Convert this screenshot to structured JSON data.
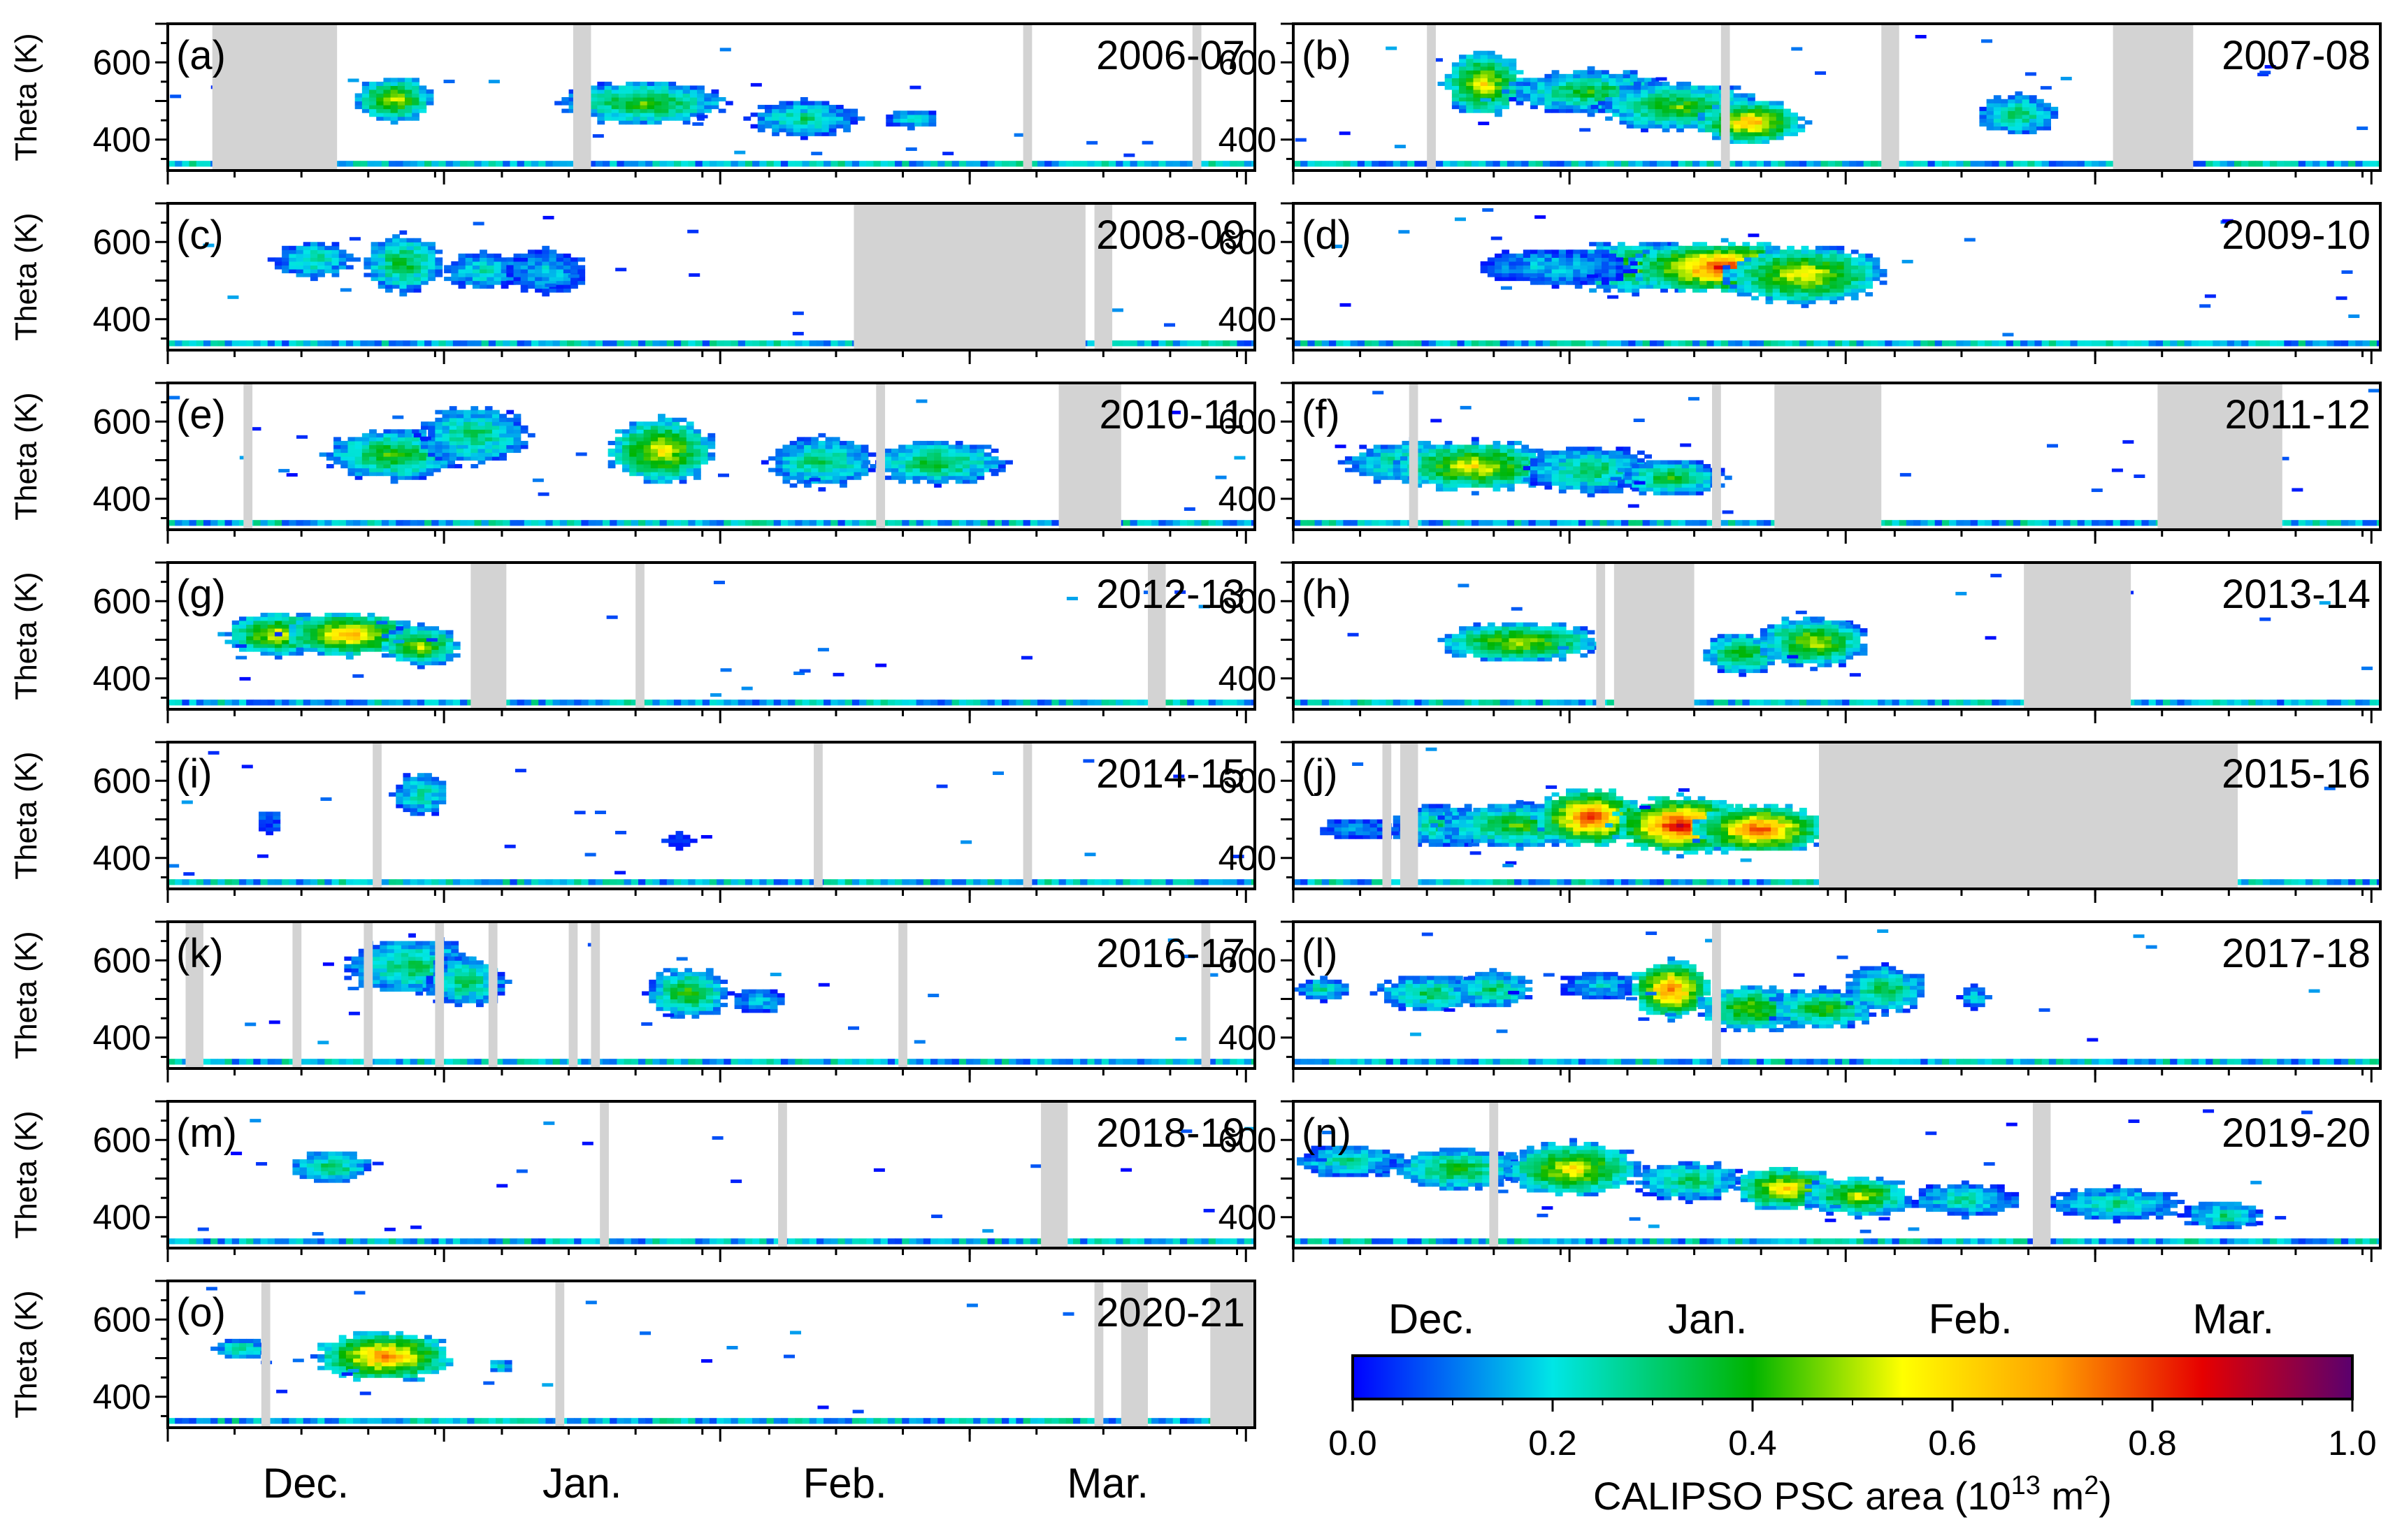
{
  "chart_data": {
    "type": "heatmap",
    "y_axis_label": "Theta (K)",
    "y_range": [
      320,
      700
    ],
    "y_ticks": [
      400,
      600
    ],
    "x_axis_ticks": [
      "Dec.",
      "Jan.",
      "Feb.",
      "Mar."
    ],
    "x_range_days": [
      0,
      122
    ],
    "colorbar": {
      "label": "CALIPSO PSC area (10",
      "label_exponent": "13",
      "label_unit": " m",
      "label_unit_exponent": "2",
      "label_close": ")",
      "min": 0.0,
      "max": 1.0,
      "ticks": [
        "0.0",
        "0.2",
        "0.4",
        "0.6",
        "0.8",
        "1.0"
      ],
      "colormap": "jet-like (blue-cyan-green-yellow-red-purple)"
    },
    "panels": [
      {
        "label": "(a)",
        "season": "2006-07",
        "nodata": [
          [
            5,
            19
          ],
          [
            45.5,
            47.5
          ],
          [
            96,
            97
          ],
          [
            115,
            116
          ]
        ],
        "blobs": [
          {
            "x": 25,
            "y": 500,
            "w": 3,
            "h": 60,
            "v": 0.55
          },
          {
            "x": 53,
            "y": 490,
            "w": 6,
            "h": 60,
            "v": 0.45
          },
          {
            "x": 71,
            "y": 450,
            "w": 4,
            "h": 50,
            "v": 0.3
          },
          {
            "x": 83,
            "y": 450,
            "w": 2,
            "h": 25,
            "v": 0.25
          }
        ]
      },
      {
        "label": "(b)",
        "season": "2007-08",
        "nodata": [
          [
            15,
            16
          ],
          [
            48,
            49
          ],
          [
            66,
            68
          ],
          [
            92,
            101
          ]
        ],
        "blobs": [
          {
            "x": 21,
            "y": 540,
            "w": 3,
            "h": 90,
            "v": 0.6
          },
          {
            "x": 33,
            "y": 520,
            "w": 6,
            "h": 60,
            "v": 0.4
          },
          {
            "x": 43,
            "y": 480,
            "w": 6,
            "h": 70,
            "v": 0.45
          },
          {
            "x": 51,
            "y": 440,
            "w": 4,
            "h": 60,
            "v": 0.7
          },
          {
            "x": 81,
            "y": 460,
            "w": 3,
            "h": 55,
            "v": 0.35
          }
        ]
      },
      {
        "label": "(c)",
        "season": "2008-09",
        "nodata": [
          [
            77,
            103
          ],
          [
            104,
            106
          ]
        ],
        "blobs": [
          {
            "x": 16,
            "y": 550,
            "w": 3,
            "h": 50,
            "v": 0.3
          },
          {
            "x": 26,
            "y": 540,
            "w": 3,
            "h": 80,
            "v": 0.4
          },
          {
            "x": 35,
            "y": 520,
            "w": 3,
            "h": 50,
            "v": 0.25
          },
          {
            "x": 42,
            "y": 520,
            "w": 3,
            "h": 60,
            "v": 0.2
          }
        ]
      },
      {
        "label": "(d)",
        "season": "2009-10",
        "nodata": [],
        "blobs": [
          {
            "x": 38,
            "y": 530,
            "w": 6,
            "h": 70,
            "v": 0.5
          },
          {
            "x": 48,
            "y": 530,
            "w": 7,
            "h": 70,
            "v": 0.85
          },
          {
            "x": 57,
            "y": 510,
            "w": 6,
            "h": 80,
            "v": 0.6
          },
          {
            "x": 29,
            "y": 530,
            "w": 6,
            "h": 50,
            "v": 0.2
          }
        ]
      },
      {
        "label": "(e)",
        "season": "2010-11",
        "nodata": [
          [
            8.5,
            9.5
          ],
          [
            79.5,
            80.5
          ],
          [
            100,
            107
          ]
        ],
        "blobs": [
          {
            "x": 25,
            "y": 510,
            "w": 5,
            "h": 70,
            "v": 0.45
          },
          {
            "x": 34,
            "y": 560,
            "w": 4,
            "h": 80,
            "v": 0.35
          },
          {
            "x": 55,
            "y": 520,
            "w": 4,
            "h": 90,
            "v": 0.6
          },
          {
            "x": 73,
            "y": 490,
            "w": 4,
            "h": 70,
            "v": 0.35
          },
          {
            "x": 86,
            "y": 490,
            "w": 5,
            "h": 60,
            "v": 0.4
          }
        ]
      },
      {
        "label": "(f)",
        "season": "2011-12",
        "nodata": [
          [
            13,
            14
          ],
          [
            47,
            48
          ],
          [
            54,
            66
          ],
          [
            97,
            111
          ]
        ],
        "blobs": [
          {
            "x": 13,
            "y": 490,
            "w": 5,
            "h": 60,
            "v": 0.35
          },
          {
            "x": 20,
            "y": 480,
            "w": 6,
            "h": 70,
            "v": 0.6
          },
          {
            "x": 33,
            "y": 470,
            "w": 5,
            "h": 65,
            "v": 0.35
          },
          {
            "x": 42,
            "y": 450,
            "w": 4,
            "h": 50,
            "v": 0.4
          }
        ]
      },
      {
        "label": "(g)",
        "season": "2012-13",
        "nodata": [
          [
            34,
            38
          ],
          [
            52.5,
            53.5
          ],
          [
            110,
            112
          ]
        ],
        "blobs": [
          {
            "x": 12,
            "y": 510,
            "w": 4,
            "h": 60,
            "v": 0.6
          },
          {
            "x": 20,
            "y": 510,
            "w": 5,
            "h": 60,
            "v": 0.7
          },
          {
            "x": 28,
            "y": 480,
            "w": 3,
            "h": 55,
            "v": 0.55
          }
        ]
      },
      {
        "label": "(h)",
        "season": "2013-14",
        "nodata": [
          [
            34,
            35
          ],
          [
            36,
            45
          ],
          [
            82,
            94
          ]
        ],
        "blobs": [
          {
            "x": 25,
            "y": 490,
            "w": 6,
            "h": 55,
            "v": 0.55
          },
          {
            "x": 50,
            "y": 460,
            "w": 3,
            "h": 55,
            "v": 0.45
          },
          {
            "x": 58,
            "y": 490,
            "w": 4,
            "h": 70,
            "v": 0.55
          }
        ]
      },
      {
        "label": "(i)",
        "season": "2014-15",
        "nodata": [
          [
            23,
            24
          ],
          [
            72.5,
            73.5
          ],
          [
            96,
            97
          ]
        ],
        "blobs": [
          {
            "x": 28,
            "y": 560,
            "w": 2,
            "h": 60,
            "v": 0.3
          },
          {
            "x": 11,
            "y": 490,
            "w": 1,
            "h": 30,
            "v": 0.1
          },
          {
            "x": 57,
            "y": 440,
            "w": 1,
            "h": 20,
            "v": 0.05
          }
        ]
      },
      {
        "label": "(j)",
        "season": "2015-16",
        "nodata": [
          [
            10,
            11
          ],
          [
            12,
            14
          ],
          [
            59,
            106
          ]
        ],
        "blobs": [
          {
            "x": 16,
            "y": 480,
            "w": 4,
            "h": 60,
            "v": 0.3
          },
          {
            "x": 25,
            "y": 480,
            "w": 6,
            "h": 60,
            "v": 0.45
          },
          {
            "x": 33,
            "y": 500,
            "w": 4,
            "h": 80,
            "v": 0.85
          },
          {
            "x": 43,
            "y": 480,
            "w": 5,
            "h": 80,
            "v": 0.9
          },
          {
            "x": 52,
            "y": 470,
            "w": 5,
            "h": 70,
            "v": 0.8
          },
          {
            "x": 7,
            "y": 470,
            "w": 3,
            "h": 30,
            "v": 0.15
          }
        ]
      },
      {
        "label": "(k)",
        "season": "2016-17",
        "nodata": [
          [
            2,
            4
          ],
          [
            14,
            15
          ],
          [
            22,
            23
          ],
          [
            30,
            31
          ],
          [
            36,
            37
          ],
          [
            45,
            46
          ],
          [
            47.5,
            48.5
          ],
          [
            82,
            83
          ],
          [
            116,
            117
          ]
        ],
        "blobs": [
          {
            "x": 27,
            "y": 580,
            "w": 5,
            "h": 80,
            "v": 0.35
          },
          {
            "x": 33,
            "y": 540,
            "w": 3,
            "h": 70,
            "v": 0.35
          },
          {
            "x": 58,
            "y": 510,
            "w": 3,
            "h": 70,
            "v": 0.45
          },
          {
            "x": 66,
            "y": 490,
            "w": 2,
            "h": 35,
            "v": 0.2
          }
        ]
      },
      {
        "label": "(l)",
        "season": "2017-18",
        "nodata": [
          [
            47,
            48
          ]
        ],
        "blobs": [
          {
            "x": 3,
            "y": 520,
            "w": 2,
            "h": 30,
            "v": 0.3
          },
          {
            "x": 15,
            "y": 510,
            "w": 4,
            "h": 50,
            "v": 0.35
          },
          {
            "x": 22,
            "y": 520,
            "w": 3,
            "h": 50,
            "v": 0.35
          },
          {
            "x": 34,
            "y": 530,
            "w": 3,
            "h": 40,
            "v": 0.2
          },
          {
            "x": 42,
            "y": 520,
            "w": 3,
            "h": 80,
            "v": 0.8
          },
          {
            "x": 51,
            "y": 470,
            "w": 4,
            "h": 65,
            "v": 0.5
          },
          {
            "x": 59,
            "y": 470,
            "w": 4,
            "h": 55,
            "v": 0.45
          },
          {
            "x": 66,
            "y": 520,
            "w": 3,
            "h": 65,
            "v": 0.4
          },
          {
            "x": 76,
            "y": 500,
            "w": 1,
            "h": 30,
            "v": 0.25
          }
        ]
      },
      {
        "label": "(m)",
        "season": "2018-19",
        "nodata": [
          [
            48.5,
            49.5
          ],
          [
            68.5,
            69.5
          ],
          [
            98,
            101
          ]
        ],
        "blobs": [
          {
            "x": 18,
            "y": 525,
            "w": 3,
            "h": 45,
            "v": 0.35
          }
        ]
      },
      {
        "label": "(n)",
        "season": "2019-20",
        "nodata": [
          [
            22,
            23
          ],
          [
            83,
            85
          ]
        ],
        "blobs": [
          {
            "x": 6,
            "y": 540,
            "w": 4,
            "h": 45,
            "v": 0.3
          },
          {
            "x": 18,
            "y": 520,
            "w": 5,
            "h": 60,
            "v": 0.4
          },
          {
            "x": 31,
            "y": 520,
            "w": 5,
            "h": 75,
            "v": 0.6
          },
          {
            "x": 44,
            "y": 490,
            "w": 4,
            "h": 55,
            "v": 0.35
          },
          {
            "x": 55,
            "y": 470,
            "w": 4,
            "h": 60,
            "v": 0.65
          },
          {
            "x": 63,
            "y": 450,
            "w": 4,
            "h": 55,
            "v": 0.55
          },
          {
            "x": 75,
            "y": 440,
            "w": 4,
            "h": 45,
            "v": 0.3
          },
          {
            "x": 92,
            "y": 430,
            "w": 5,
            "h": 45,
            "v": 0.3
          },
          {
            "x": 104,
            "y": 400,
            "w": 3,
            "h": 40,
            "v": 0.3
          }
        ]
      },
      {
        "label": "(o)",
        "season": "2020-21",
        "nodata": [
          [
            10.5,
            11.5
          ],
          [
            43.5,
            44.5
          ],
          [
            104,
            105
          ],
          [
            107,
            110
          ],
          [
            117,
            122
          ]
        ],
        "blobs": [
          {
            "x": 8,
            "y": 520,
            "w": 2,
            "h": 30,
            "v": 0.3
          },
          {
            "x": 24,
            "y": 500,
            "w": 5,
            "h": 70,
            "v": 0.75
          },
          {
            "x": 37,
            "y": 475,
            "w": 1,
            "h": 20,
            "v": 0.3
          }
        ]
      }
    ]
  }
}
